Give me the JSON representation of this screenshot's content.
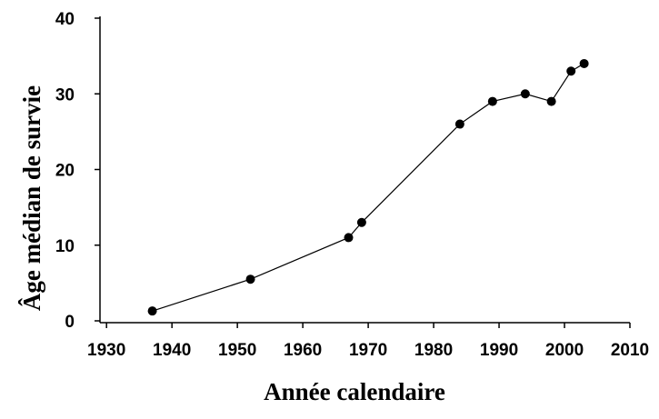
{
  "chart_data": {
    "type": "line",
    "x_label": "Année calendaire",
    "y_label": "Âge médian de survie",
    "x": [
      1937,
      1952,
      1967,
      1969,
      1984,
      1989,
      1994,
      1998,
      2001,
      2003
    ],
    "series": [
      {
        "color": "#000000",
        "values": [
          1.3,
          5.5,
          11,
          13,
          26,
          29,
          30,
          29,
          33,
          34
        ]
      }
    ],
    "xlim": [
      1929,
      2010
    ],
    "xticks": [
      1930,
      1940,
      1950,
      1960,
      1970,
      1980,
      1990,
      2000,
      2010
    ],
    "ylim": [
      0,
      40
    ],
    "yticks": [
      0,
      10,
      20,
      30,
      40
    ],
    "grid": false
  }
}
